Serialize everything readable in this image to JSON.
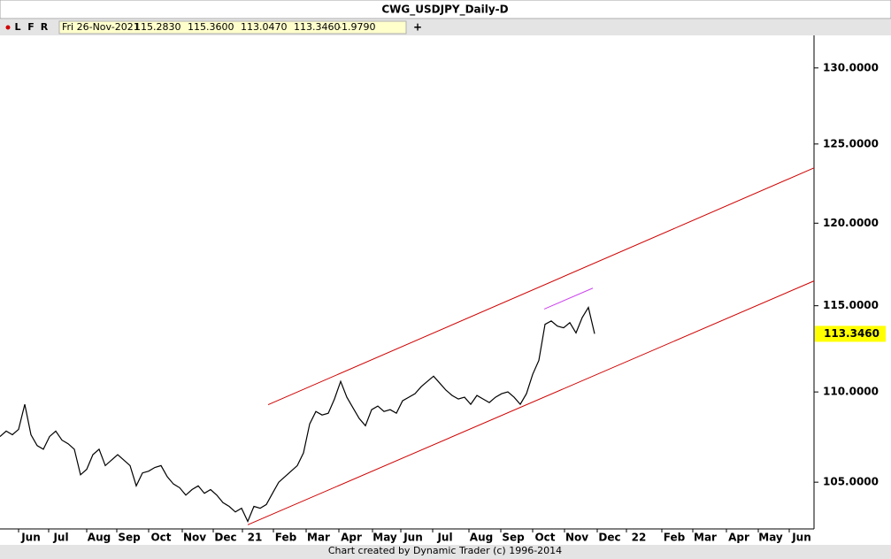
{
  "chart_data": {
    "type": "line",
    "title": "CWG_USDJPY_Daily-D",
    "toolbar": [
      "L",
      "F",
      "R"
    ],
    "toolbar_add": "+",
    "info": [
      "Fri 26-Nov-2021",
      "115.2830",
      "115.3600",
      "113.0470",
      "113.3460",
      "-1.9790"
    ],
    "footer": "Chart created by Dynamic Trader  (c) 1996-2014",
    "log_scale": true,
    "ylim": [
      102.5,
      132.2
    ],
    "yticks": [
      {
        "value": 105,
        "label": "105.0000"
      },
      {
        "value": 110,
        "label": "110.0000"
      },
      {
        "value": 115,
        "label": "115.0000"
      },
      {
        "value": 120,
        "label": "120.0000"
      },
      {
        "value": 125,
        "label": "125.0000"
      },
      {
        "value": 130,
        "label": "130.0000"
      }
    ],
    "x_labels": [
      "Jun",
      "Jul",
      "Aug",
      "Sep",
      "Oct",
      "Nov",
      "Dec",
      "21",
      "Feb",
      "Mar",
      "Apr",
      "May",
      "Jun",
      "Jul",
      "Aug",
      "Sep",
      "Oct",
      "Nov",
      "Dec",
      "22",
      "Feb",
      "Mar",
      "Apr",
      "May",
      "Jun"
    ],
    "last_price": {
      "value": 113.346,
      "label": "113.3460"
    },
    "series": [
      {
        "color": "#000000",
        "values": [
          107.5,
          107.8,
          107.6,
          107.9,
          109.3,
          107.6,
          107.0,
          106.8,
          107.5,
          107.8,
          107.3,
          107.1,
          106.8,
          105.4,
          105.7,
          106.5,
          106.8,
          105.9,
          106.2,
          106.5,
          106.2,
          105.9,
          104.8,
          105.5,
          105.6,
          105.8,
          105.9,
          105.3,
          104.9,
          104.7,
          104.3,
          104.6,
          104.8,
          104.4,
          104.6,
          104.3,
          103.9,
          103.7,
          103.4,
          103.6,
          102.9,
          103.7,
          103.6,
          103.8,
          104.4,
          105.0,
          105.3,
          105.6,
          105.9,
          106.6,
          108.2,
          108.9,
          108.7,
          108.8,
          109.6,
          110.6,
          109.7,
          109.1,
          108.5,
          108.1,
          109.0,
          109.2,
          108.9,
          109.0,
          108.8,
          109.5,
          109.7,
          109.9,
          110.3,
          110.6,
          110.9,
          110.5,
          110.1,
          109.8,
          109.6,
          109.7,
          109.3,
          109.8,
          109.6,
          109.4,
          109.7,
          109.9,
          110.0,
          109.7,
          109.3,
          109.9,
          111.0,
          111.8,
          113.9,
          114.1,
          113.8,
          113.7,
          114.0,
          113.4,
          114.3,
          114.9,
          113.35
        ]
      }
    ],
    "trendlines": [
      {
        "color": "#d00000",
        "values": [
          109.28,
          123.47
        ]
      },
      {
        "color": "#d00000",
        "values": [
          102.72,
          116.48
        ]
      },
      {
        "color": "#cc44ee",
        "values": [
          114.8,
          116.05
        ]
      }
    ]
  }
}
